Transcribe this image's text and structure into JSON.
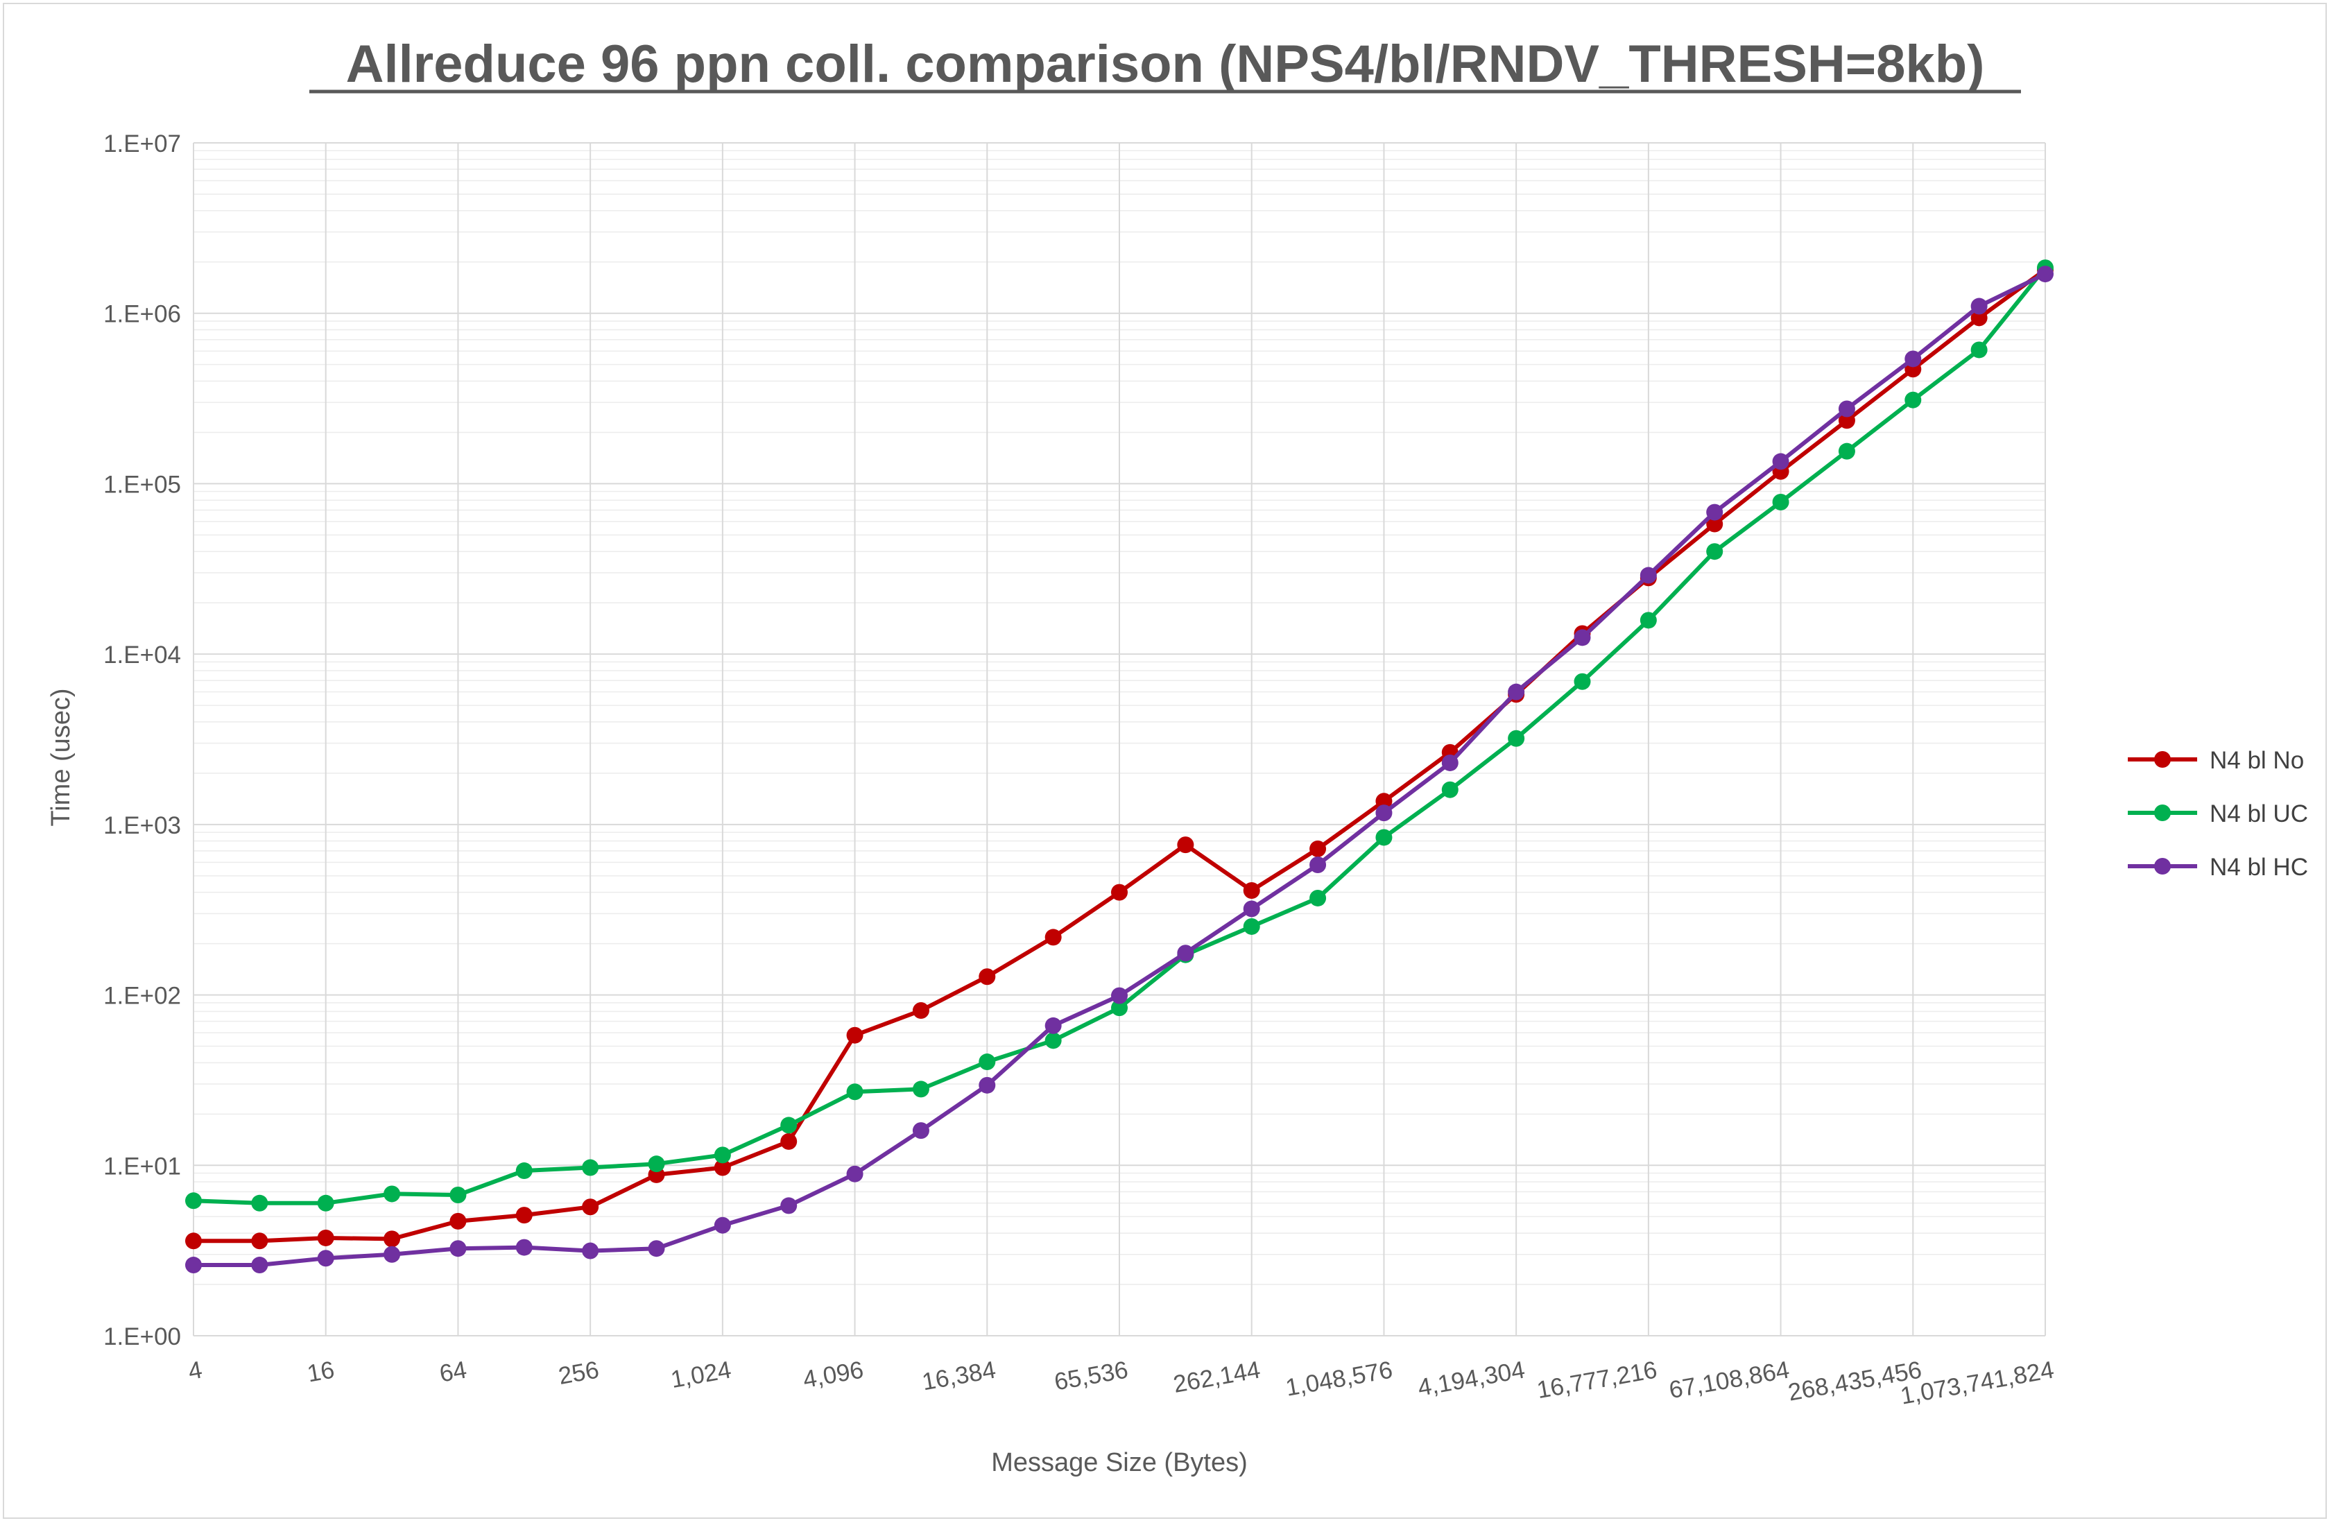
{
  "chart_data": {
    "type": "line",
    "title": "Allreduce 96 ppn coll. comparison (NPS4/bl/RNDV_THRESH=8kb)",
    "xlabel": "Message Size (Bytes)",
    "ylabel": "Time (usec)",
    "y_scale": "log",
    "ylim": [
      1,
      10000000
    ],
    "y_ticks": [
      "1.E+00",
      "1.E+01",
      "1.E+02",
      "1.E+03",
      "1.E+04",
      "1.E+05",
      "1.E+06",
      "1.E+07"
    ],
    "x": [
      4,
      8,
      16,
      32,
      64,
      128,
      256,
      512,
      1024,
      2048,
      4096,
      8192,
      16384,
      32768,
      65536,
      131072,
      262144,
      524288,
      1048576,
      2097152,
      4194304,
      8388608,
      16777216,
      33554432,
      67108864,
      134217728,
      268435456,
      536870912,
      1073741824
    ],
    "x_tick_labels": [
      "4",
      "16",
      "64",
      "256",
      "1,024",
      "4,096",
      "16,384",
      "65,536",
      "262,144",
      "1,048,576",
      "4,194,304",
      "16,777,216",
      "67,108,864",
      "268,435,456",
      "1,073,741,824"
    ],
    "legend_position": "right",
    "grid": true,
    "series": [
      {
        "name": "N4 bl No",
        "color": "#c00000",
        "values": [
          3.6,
          3.6,
          3.75,
          3.7,
          4.7,
          5.1,
          5.7,
          8.8,
          9.7,
          13.8,
          58,
          81,
          128,
          218,
          400,
          760,
          410,
          720,
          1370,
          2650,
          5800,
          13200,
          28000,
          58000,
          118000,
          235000,
          470000,
          940000,
          1800000
        ]
      },
      {
        "name": "N4 bl UC",
        "color": "#00b050",
        "values": [
          6.2,
          6.0,
          6.0,
          6.8,
          6.7,
          9.3,
          9.7,
          10.2,
          11.5,
          17.2,
          27,
          28,
          40.5,
          54,
          84,
          172,
          252,
          370,
          840,
          1600,
          3200,
          6900,
          15800,
          40000,
          78000,
          155000,
          310000,
          610000,
          1850000
        ]
      },
      {
        "name": "N4 bl HC",
        "color": "#7030a0",
        "values": [
          2.6,
          2.6,
          2.85,
          3.0,
          3.25,
          3.3,
          3.15,
          3.25,
          4.45,
          5.8,
          8.9,
          16,
          29.5,
          66,
          99,
          176,
          320,
          580,
          1170,
          2300,
          6000,
          12500,
          29000,
          68000,
          135000,
          275000,
          540000,
          1100000,
          1700000
        ]
      }
    ]
  }
}
